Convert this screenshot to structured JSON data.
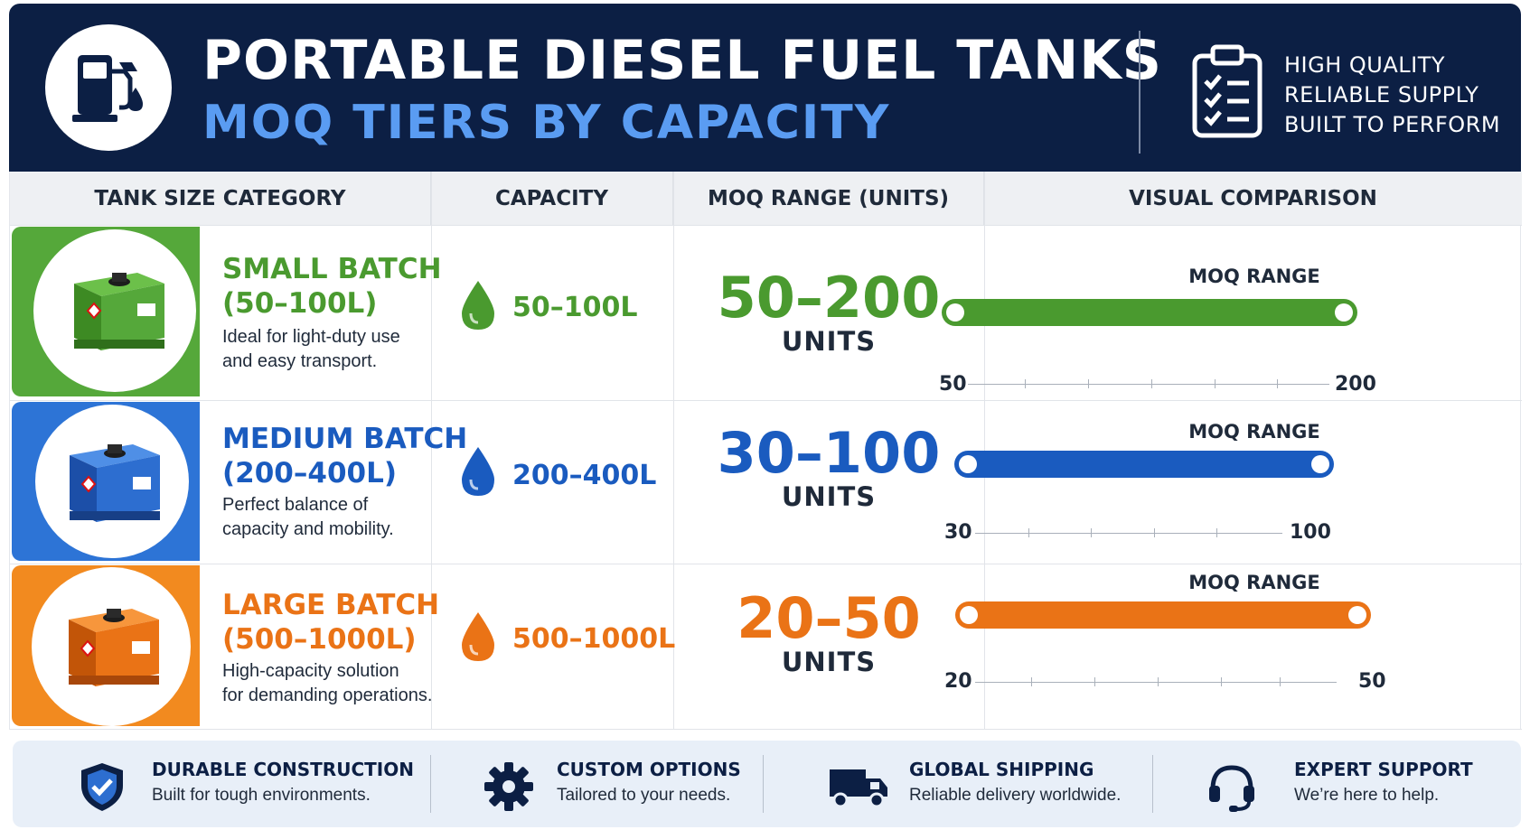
{
  "header": {
    "title": "PORTABLE DIESEL FUEL TANKS",
    "subtitle": "MOQ TIERS BY CAPACITY",
    "logo_icon": "fuel-pump-icon",
    "badge_icon": "clipboard-checklist-icon",
    "taglines": [
      "HIGH QUALITY",
      "RELIABLE SUPPLY",
      "BUILT TO PERFORM"
    ]
  },
  "columns": [
    "TANK SIZE CATEGORY",
    "CAPACITY",
    "MOQ RANGE (UNITS)",
    "VISUAL COMPARISON"
  ],
  "rows": [
    {
      "name_line1": "SMALL BATCH",
      "name_line2": "(50–100L)",
      "desc_line1": "Ideal for light-duty use",
      "desc_line2": "and easy transport.",
      "capacity": "50–100L",
      "moq": "50–200",
      "units": "UNITS",
      "range_label": "MOQ RANGE",
      "min": "50",
      "max": "200",
      "color": "#4a9a2f",
      "band_color": "#55a83a",
      "tank_icon": "green-fuel-tank-icon"
    },
    {
      "name_line1": "MEDIUM BATCH",
      "name_line2": "(200–400L)",
      "desc_line1": "Perfect balance of",
      "desc_line2": "capacity and mobility.",
      "capacity": "200–400L",
      "moq": "30–100",
      "units": "UNITS",
      "range_label": "MOQ RANGE",
      "min": "30",
      "max": "100",
      "color": "#1a5bbf",
      "band_color": "#2d74d6",
      "tank_icon": "blue-fuel-tank-icon"
    },
    {
      "name_line1": "LARGE BATCH",
      "name_line2": "(500–1000L)",
      "desc_line1": "High-capacity solution",
      "desc_line2": "for demanding operations.",
      "capacity": "500–1000L",
      "moq": "20–50",
      "units": "UNITS",
      "range_label": "MOQ RANGE",
      "min": "20",
      "max": "50",
      "color": "#ea7316",
      "band_color": "#f28a1f",
      "tank_icon": "orange-fuel-tank-icon"
    }
  ],
  "features": [
    {
      "icon": "shield-check-icon",
      "title": "DURABLE CONSTRUCTION",
      "desc": "Built for tough environments."
    },
    {
      "icon": "gear-icon",
      "title": "CUSTOM OPTIONS",
      "desc": "Tailored to your needs."
    },
    {
      "icon": "truck-icon",
      "title": "GLOBAL SHIPPING",
      "desc": "Reliable delivery worldwide."
    },
    {
      "icon": "headset-icon",
      "title": "EXPERT SUPPORT",
      "desc": "We’re here to help."
    }
  ]
}
